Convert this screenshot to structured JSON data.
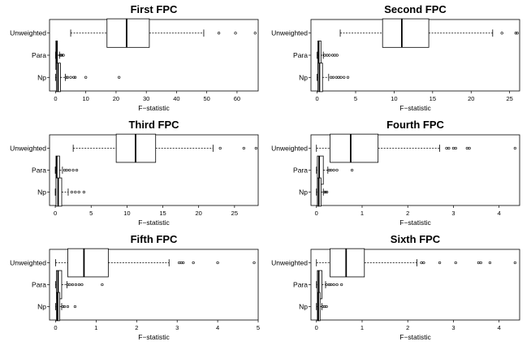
{
  "chart_data": [
    {
      "type": "boxplot",
      "title": "First FPC",
      "xlabel": "F−statistic",
      "xlim": [
        -2,
        67
      ],
      "xticks": [
        0,
        10,
        20,
        30,
        40,
        50,
        60
      ],
      "categories": [
        "Unweighted",
        "Para",
        "Np"
      ],
      "boxes": [
        {
          "min": 5,
          "q1": 17,
          "median": 23.5,
          "q3": 31,
          "max": 49,
          "outliers": [
            54,
            59.5,
            66
          ]
        },
        {
          "min": 0,
          "q1": 0.1,
          "median": 0.3,
          "q3": 0.6,
          "max": 1.3,
          "outliers": [
            1.5,
            1.8,
            2.1,
            2.6
          ]
        },
        {
          "min": 0,
          "q1": 0.3,
          "median": 0.8,
          "q3": 1.6,
          "max": 3.2,
          "outliers": [
            3.5,
            4,
            5,
            6,
            6.5,
            10,
            21
          ]
        }
      ]
    },
    {
      "type": "boxplot",
      "title": "Second FPC",
      "xlabel": "F−statistic",
      "xlim": [
        -0.8,
        26.3
      ],
      "xticks": [
        0,
        5,
        10,
        15,
        20,
        25
      ],
      "categories": [
        "Unweighted",
        "Para",
        "Np"
      ],
      "boxes": [
        {
          "min": 3,
          "q1": 8.5,
          "median": 11,
          "q3": 14.5,
          "max": 22.8,
          "outliers": [
            24,
            25.8,
            26
          ]
        },
        {
          "min": 0,
          "q1": 0.1,
          "median": 0.2,
          "q3": 0.5,
          "max": 0.8,
          "outliers": [
            1,
            1.3,
            1.6,
            2,
            2.3,
            2.6
          ]
        },
        {
          "min": 0,
          "q1": 0.1,
          "median": 0.3,
          "q3": 0.7,
          "max": 1.5,
          "outliers": [
            1.8,
            2.1,
            2.5,
            2.8,
            3.1,
            3.5,
            4
          ]
        }
      ]
    },
    {
      "type": "boxplot",
      "title": "Third FPC",
      "xlabel": "F−statistic",
      "xlim": [
        -0.8,
        28.3
      ],
      "xticks": [
        0,
        5,
        10,
        15,
        20,
        25
      ],
      "categories": [
        "Unweighted",
        "Para",
        "Np"
      ],
      "boxes": [
        {
          "min": 2.5,
          "q1": 8.5,
          "median": 11.2,
          "q3": 14,
          "max": 22,
          "outliers": [
            23,
            26.3,
            28
          ]
        },
        {
          "min": 0,
          "q1": 0.1,
          "median": 0.2,
          "q3": 0.6,
          "max": 1,
          "outliers": [
            1.3,
            1.6,
            2,
            2.5,
            3
          ]
        },
        {
          "min": 0,
          "q1": 0.1,
          "median": 0.4,
          "q3": 0.9,
          "max": 1.8,
          "outliers": [
            2.3,
            2.8,
            3.3,
            4
          ]
        }
      ]
    },
    {
      "type": "boxplot",
      "title": "Fourth FPC",
      "xlabel": "F−statistic",
      "xlim": [
        -0.12,
        4.45
      ],
      "xticks": [
        0,
        1,
        2,
        3,
        4
      ],
      "categories": [
        "Unweighted",
        "Para",
        "Np"
      ],
      "boxes": [
        {
          "min": 0,
          "q1": 0.3,
          "median": 0.75,
          "q3": 1.35,
          "max": 2.7,
          "outliers": [
            2.85,
            2.9,
            3,
            3.05,
            3.3,
            3.35,
            4.35
          ]
        },
        {
          "min": 0,
          "q1": 0.02,
          "median": 0.06,
          "q3": 0.15,
          "max": 0.25,
          "outliers": [
            0.28,
            0.32,
            0.38,
            0.45,
            0.78
          ]
        },
        {
          "min": 0,
          "q1": 0.02,
          "median": 0.05,
          "q3": 0.1,
          "max": 0.15,
          "outliers": [
            0.17,
            0.2,
            0.23
          ]
        }
      ]
    },
    {
      "type": "boxplot",
      "title": "Fifth FPC",
      "xlabel": "F−statistic",
      "xlim": [
        -0.15,
        5
      ],
      "xticks": [
        0,
        1,
        2,
        3,
        4,
        5
      ],
      "categories": [
        "Unweighted",
        "Para",
        "Np"
      ],
      "boxes": [
        {
          "min": 0,
          "q1": 0.3,
          "median": 0.7,
          "q3": 1.3,
          "max": 2.8,
          "outliers": [
            3.05,
            3.1,
            3.15,
            3.4,
            4,
            4.9
          ]
        },
        {
          "min": 0,
          "q1": 0.02,
          "median": 0.06,
          "q3": 0.15,
          "max": 0.28,
          "outliers": [
            0.3,
            0.35,
            0.42,
            0.5,
            0.58,
            0.65,
            1.15
          ]
        },
        {
          "min": 0,
          "q1": 0.02,
          "median": 0.05,
          "q3": 0.1,
          "max": 0.15,
          "outliers": [
            0.18,
            0.22,
            0.3,
            0.48
          ]
        }
      ]
    },
    {
      "type": "boxplot",
      "title": "Sixth FPC",
      "xlabel": "F−statistic",
      "xlim": [
        -0.12,
        4.45
      ],
      "xticks": [
        0,
        1,
        2,
        3,
        4
      ],
      "categories": [
        "Unweighted",
        "Para",
        "Np"
      ],
      "boxes": [
        {
          "min": 0,
          "q1": 0.3,
          "median": 0.65,
          "q3": 1.05,
          "max": 2.2,
          "outliers": [
            2.3,
            2.35,
            2.7,
            3.05,
            3.55,
            3.6,
            3.8,
            4.35
          ]
        },
        {
          "min": 0,
          "q1": 0.02,
          "median": 0.05,
          "q3": 0.12,
          "max": 0.2,
          "outliers": [
            0.22,
            0.28,
            0.32,
            0.38,
            0.45,
            0.55
          ]
        },
        {
          "min": 0,
          "q1": 0.02,
          "median": 0.04,
          "q3": 0.08,
          "max": 0.12,
          "outliers": [
            0.14,
            0.18,
            0.22
          ]
        }
      ]
    }
  ]
}
